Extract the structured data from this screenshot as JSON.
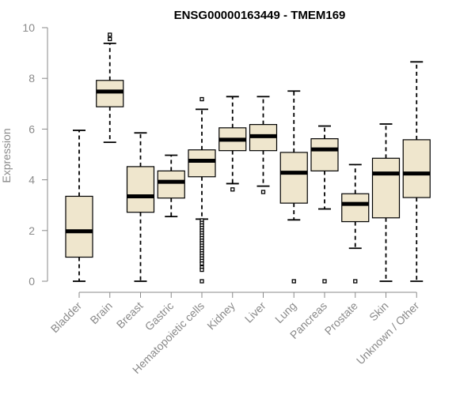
{
  "chart_data": {
    "type": "boxplot",
    "title": "ENSG00000163449 - TMEM169",
    "xlabel": "",
    "ylabel": "Expression",
    "ylim": [
      0,
      10
    ],
    "yticks": [
      0,
      2,
      4,
      6,
      8,
      10
    ],
    "colors": {
      "box_fill": "#efe6cd",
      "box_stroke": "#000000",
      "axis": "#8a8a8a"
    },
    "categories": [
      "Bladder",
      "Brain",
      "Breast",
      "Gastric",
      "Hematopoietic cells",
      "Kidney",
      "Liver",
      "Lung",
      "Pancreas",
      "Prostate",
      "Skin",
      "Unknown / Other"
    ],
    "boxes": [
      {
        "name": "Bladder",
        "whislo": 0.0,
        "q1": 0.95,
        "med": 1.97,
        "q3": 3.35,
        "whishi": 5.95,
        "fliers": []
      },
      {
        "name": "Brain",
        "whislo": 5.48,
        "q1": 6.88,
        "med": 7.48,
        "q3": 7.92,
        "whishi": 9.38,
        "fliers": [
          9.55,
          9.72
        ]
      },
      {
        "name": "Breast",
        "whislo": 0.0,
        "q1": 2.72,
        "med": 3.35,
        "q3": 4.52,
        "whishi": 5.85,
        "fliers": []
      },
      {
        "name": "Gastric",
        "whislo": 2.55,
        "q1": 3.28,
        "med": 3.92,
        "q3": 4.35,
        "whishi": 4.97,
        "fliers": []
      },
      {
        "name": "Hematopoietic cells",
        "whislo": 2.45,
        "q1": 4.12,
        "med": 4.75,
        "q3": 5.18,
        "whishi": 6.78,
        "fliers": [
          7.18,
          2.4,
          2.3,
          2.2,
          2.1,
          2.0,
          1.9,
          1.8,
          1.7,
          1.6,
          1.5,
          1.4,
          1.3,
          1.2,
          1.1,
          1.0,
          0.9,
          0.8,
          0.7,
          0.55,
          0.45,
          0.0
        ]
      },
      {
        "name": "Kidney",
        "whislo": 3.85,
        "q1": 5.15,
        "med": 5.58,
        "q3": 6.05,
        "whishi": 7.28,
        "fliers": [
          3.62
        ]
      },
      {
        "name": "Liver",
        "whislo": 3.75,
        "q1": 5.15,
        "med": 5.72,
        "q3": 6.18,
        "whishi": 7.28,
        "fliers": [
          3.52
        ]
      },
      {
        "name": "Lung",
        "whislo": 2.42,
        "q1": 3.08,
        "med": 4.28,
        "q3": 5.08,
        "whishi": 7.5,
        "fliers": [
          0.0
        ]
      },
      {
        "name": "Pancreas",
        "whislo": 2.85,
        "q1": 4.35,
        "med": 5.2,
        "q3": 5.62,
        "whishi": 6.12,
        "fliers": [
          0.0
        ]
      },
      {
        "name": "Prostate",
        "whislo": 1.3,
        "q1": 2.35,
        "med": 3.05,
        "q3": 3.45,
        "whishi": 4.6,
        "fliers": [
          0.0
        ]
      },
      {
        "name": "Skin",
        "whislo": 0.0,
        "q1": 2.5,
        "med": 4.25,
        "q3": 4.85,
        "whishi": 6.2,
        "fliers": []
      },
      {
        "name": "Unknown / Other",
        "whislo": 0.0,
        "q1": 3.3,
        "med": 4.25,
        "q3": 5.58,
        "whishi": 8.65,
        "fliers": []
      }
    ]
  }
}
